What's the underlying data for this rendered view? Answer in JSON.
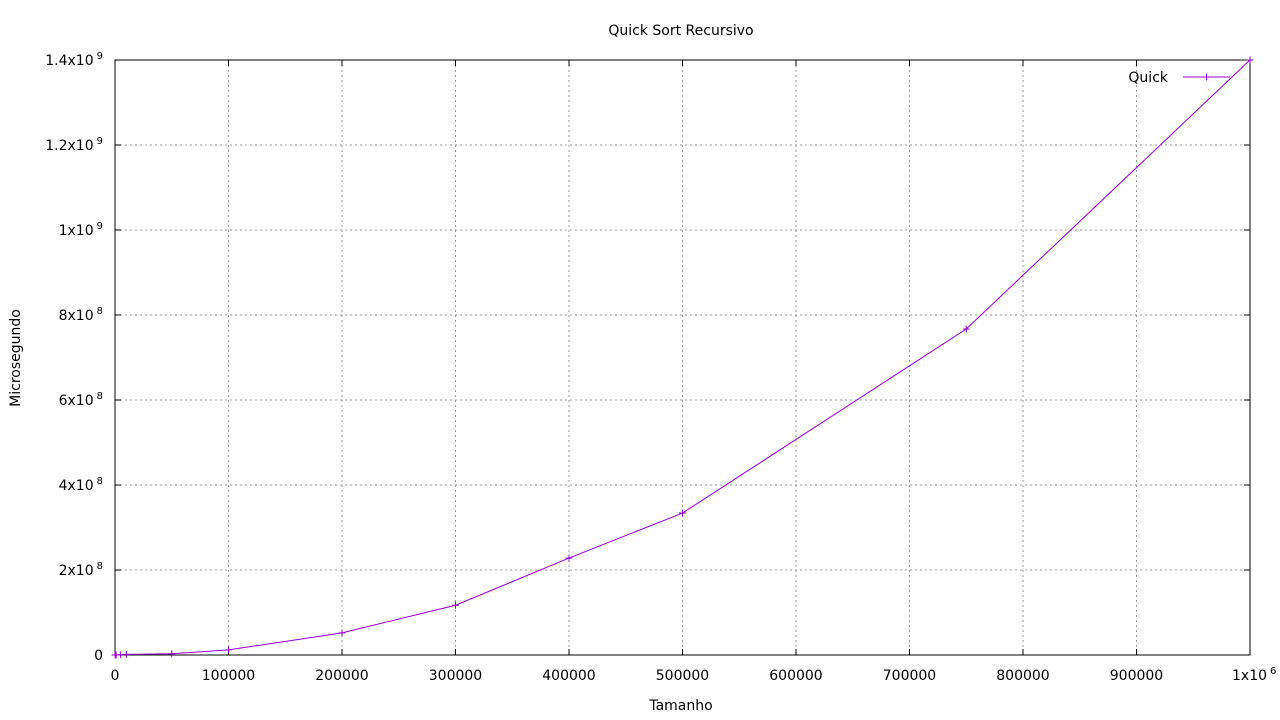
{
  "chart_data": {
    "type": "line",
    "title": "Quick Sort Recursivo",
    "xlabel": "Tamanho",
    "ylabel": "Microsegundo",
    "xlim": [
      0,
      1000000
    ],
    "ylim": [
      0,
      1400000000
    ],
    "grid": true,
    "legend_position": "top-right",
    "x_ticks": [
      {
        "value": 0,
        "label": "0",
        "sup": ""
      },
      {
        "value": 100000,
        "label": "100000",
        "sup": ""
      },
      {
        "value": 200000,
        "label": "200000",
        "sup": ""
      },
      {
        "value": 300000,
        "label": "300000",
        "sup": ""
      },
      {
        "value": 400000,
        "label": "400000",
        "sup": ""
      },
      {
        "value": 500000,
        "label": "500000",
        "sup": ""
      },
      {
        "value": 600000,
        "label": "600000",
        "sup": ""
      },
      {
        "value": 700000,
        "label": "700000",
        "sup": ""
      },
      {
        "value": 800000,
        "label": "800000",
        "sup": ""
      },
      {
        "value": 900000,
        "label": "900000",
        "sup": ""
      },
      {
        "value": 1000000,
        "label": "1x10",
        "sup": "6"
      }
    ],
    "y_ticks": [
      {
        "value": 0,
        "label": "0",
        "sup": ""
      },
      {
        "value": 200000000,
        "label": "2x10",
        "sup": "8"
      },
      {
        "value": 400000000,
        "label": "4x10",
        "sup": "8"
      },
      {
        "value": 600000000,
        "label": "6x10",
        "sup": "8"
      },
      {
        "value": 800000000,
        "label": "8x10",
        "sup": "8"
      },
      {
        "value": 1000000000,
        "label": "1x10",
        "sup": "9"
      },
      {
        "value": 1200000000,
        "label": "1.2x10",
        "sup": "9"
      },
      {
        "value": 1400000000,
        "label": "1.4x10",
        "sup": "9"
      }
    ],
    "series": [
      {
        "name": "Quick",
        "color": "#9400d3",
        "marker": "plus",
        "x": [
          100,
          1000,
          5000,
          10000,
          50000,
          100000,
          200000,
          300000,
          400000,
          500000,
          750000,
          1000000
        ],
        "y": [
          0,
          100000,
          500000,
          1500000,
          3000000,
          12000000,
          52000000,
          117000000,
          228000000,
          334000000,
          767000000,
          1400000000
        ]
      }
    ]
  }
}
